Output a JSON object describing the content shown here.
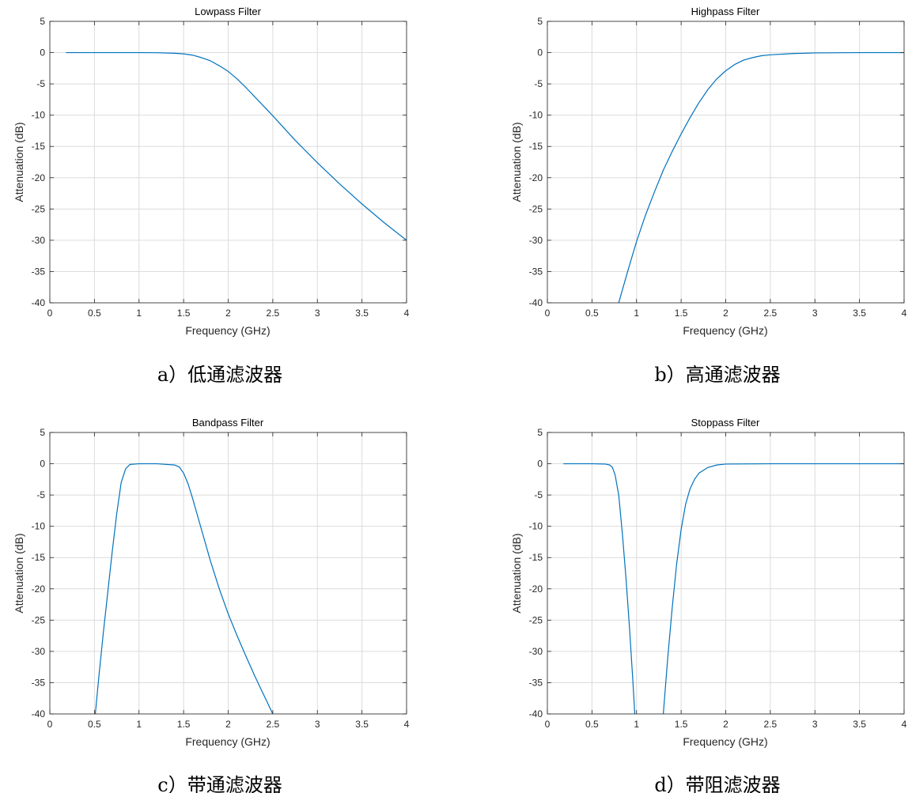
{
  "style": {
    "line_color": "#0072BD",
    "grid_color": "#dcdcdc",
    "axis_color": "#262626"
  },
  "chart_data": [
    {
      "type": "line",
      "title": "Lowpass Filter",
      "xlabel": "Frequency (GHz)",
      "ylabel": "Attenuation (dB)",
      "caption": "a）低通滤波器",
      "xlim": [
        0,
        4
      ],
      "ylim": [
        -40,
        5
      ],
      "xticks": [
        "0",
        "0.5",
        "1",
        "1.5",
        "2",
        "2.5",
        "3",
        "3.5",
        "4"
      ],
      "yticks": [
        "5",
        "0",
        "-5",
        "-10",
        "-15",
        "-20",
        "-25",
        "-30",
        "-35",
        "-40"
      ],
      "grid": true,
      "series": [
        {
          "x": [
            0.18,
            0.5,
            1.0,
            1.2,
            1.4,
            1.5,
            1.6,
            1.7,
            1.8,
            1.9,
            2.0,
            2.1,
            2.2,
            2.3,
            2.4,
            2.5,
            2.75,
            3.0,
            3.25,
            3.5,
            3.75,
            4.0
          ],
          "y": [
            0,
            0,
            0,
            -0.02,
            -0.1,
            -0.2,
            -0.4,
            -0.8,
            -1.3,
            -2.1,
            -3.0,
            -4.2,
            -5.6,
            -7.1,
            -8.6,
            -10.1,
            -14.0,
            -17.6,
            -21.0,
            -24.2,
            -27.2,
            -30.0
          ]
        }
      ]
    },
    {
      "type": "line",
      "title": "Highpass Filter",
      "xlabel": "Frequency (GHz)",
      "ylabel": "Attenuation (dB)",
      "caption": "b）高通滤波器",
      "xlim": [
        0,
        4
      ],
      "ylim": [
        -40,
        5
      ],
      "xticks": [
        "0",
        "0.5",
        "1",
        "1.5",
        "2",
        "2.5",
        "3",
        "3.5",
        "4"
      ],
      "yticks": [
        "5",
        "0",
        "-5",
        "-10",
        "-15",
        "-20",
        "-25",
        "-30",
        "-35",
        "-40"
      ],
      "grid": true,
      "series": [
        {
          "x": [
            0.8,
            0.9,
            1.0,
            1.1,
            1.2,
            1.3,
            1.4,
            1.5,
            1.6,
            1.7,
            1.8,
            1.9,
            2.0,
            2.1,
            2.2,
            2.3,
            2.4,
            2.5,
            2.75,
            3.0,
            3.5,
            4.0
          ],
          "y": [
            -40,
            -35.0,
            -30.2,
            -26.0,
            -22.3,
            -18.8,
            -15.8,
            -13.0,
            -10.4,
            -8.0,
            -5.9,
            -4.2,
            -2.9,
            -1.9,
            -1.2,
            -0.8,
            -0.5,
            -0.35,
            -0.15,
            -0.05,
            0,
            0
          ]
        }
      ]
    },
    {
      "type": "line",
      "title": "Bandpass Filter",
      "xlabel": "Frequency (GHz)",
      "ylabel": "Attenuation (dB)",
      "caption": "c）带通滤波器",
      "xlim": [
        0,
        4
      ],
      "ylim": [
        -40,
        5
      ],
      "xticks": [
        "0",
        "0.5",
        "1",
        "1.5",
        "2",
        "2.5",
        "3",
        "3.5",
        "4"
      ],
      "yticks": [
        "5",
        "0",
        "-5",
        "-10",
        "-15",
        "-20",
        "-25",
        "-30",
        "-35",
        "-40"
      ],
      "grid": true,
      "series": [
        {
          "x": [
            0.51,
            0.55,
            0.6,
            0.65,
            0.7,
            0.75,
            0.8,
            0.85,
            0.9,
            1.0,
            1.2,
            1.4,
            1.45,
            1.5,
            1.55,
            1.6,
            1.7,
            1.8,
            1.9,
            2.0,
            2.1,
            2.2,
            2.3,
            2.4,
            2.5
          ],
          "y": [
            -40,
            -34.0,
            -27.0,
            -20.5,
            -14.0,
            -8.0,
            -3.0,
            -0.8,
            -0.1,
            0,
            0,
            -0.2,
            -0.5,
            -1.5,
            -3.2,
            -5.5,
            -10.5,
            -15.5,
            -20.0,
            -24.0,
            -27.5,
            -30.8,
            -34.0,
            -37.0,
            -40
          ]
        }
      ]
    },
    {
      "type": "line",
      "title": "Stoppass Filter",
      "xlabel": "Frequency (GHz)",
      "ylabel": "Attenuation (dB)",
      "caption": "d）带阻滤波器",
      "xlim": [
        0,
        4
      ],
      "ylim": [
        -40,
        5
      ],
      "xticks": [
        "0",
        "0.5",
        "1",
        "1.5",
        "2",
        "2.5",
        "3",
        "3.5",
        "4"
      ],
      "yticks": [
        "5",
        "0",
        "-5",
        "-10",
        "-15",
        "-20",
        "-25",
        "-30",
        "-35",
        "-40"
      ],
      "grid": true,
      "series": [
        {
          "x": [
            0.18,
            0.5,
            0.65,
            0.7,
            0.73,
            0.76,
            0.8,
            0.84,
            0.88,
            0.92,
            0.96,
            0.98
          ],
          "y": [
            0,
            0,
            -0.05,
            -0.2,
            -0.6,
            -1.8,
            -5.0,
            -11.0,
            -18.0,
            -26.0,
            -35.0,
            -40
          ]
        },
        {
          "x": [
            1.3,
            1.35,
            1.4,
            1.45,
            1.5,
            1.55,
            1.6,
            1.65,
            1.7,
            1.8,
            1.9,
            2.0,
            2.5,
            3.0,
            3.5,
            4.0
          ],
          "y": [
            -40,
            -31.0,
            -23.0,
            -16.0,
            -10.5,
            -6.5,
            -4.0,
            -2.5,
            -1.5,
            -0.6,
            -0.2,
            -0.05,
            0,
            0,
            0,
            0
          ]
        }
      ]
    }
  ]
}
